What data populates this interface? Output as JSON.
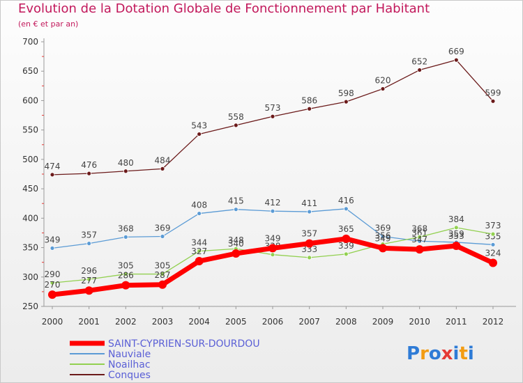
{
  "title": "Evolution de la Dotation Globale de Fonctionnement par Habitant",
  "subtitle": "(en € et par an)",
  "logo": {
    "text": "Proxiti"
  },
  "chart_data": {
    "type": "line",
    "title": "Evolution de la Dotation Globale de Fonctionnement par Habitant",
    "subtitle": "(en € et par an)",
    "x": [
      "2000",
      "2001",
      "2002",
      "2003",
      "2004",
      "2005",
      "2006",
      "2007",
      "2008",
      "2009",
      "2010",
      "2011",
      "2012"
    ],
    "ylim": [
      250,
      700
    ],
    "yticks": [
      250,
      300,
      350,
      400,
      450,
      500,
      550,
      600,
      650,
      700
    ],
    "grid": false,
    "legend": "bottom-left",
    "series": [
      {
        "name": "SAINT-CYPRIEN-SUR-DOURDOU",
        "color": "#ff0000",
        "values": [
          270,
          277,
          286,
          287,
          327,
          340,
          349,
          357,
          365,
          349,
          347,
          353,
          324
        ]
      },
      {
        "name": "Nauviale",
        "color": "#5b9bd5",
        "values": [
          349,
          357,
          368,
          369,
          408,
          415,
          412,
          411,
          416,
          369,
          361,
          359,
          355
        ]
      },
      {
        "name": "Noailhac",
        "color": "#92d050",
        "values": [
          290,
          296,
          305,
          305,
          344,
          348,
          338,
          333,
          339,
          356,
          368,
          384,
          373
        ]
      },
      {
        "name": "Conques",
        "color": "#6b1a1a",
        "values": [
          474,
          476,
          480,
          484,
          543,
          558,
          573,
          586,
          598,
          620,
          652,
          669,
          599
        ]
      }
    ]
  }
}
